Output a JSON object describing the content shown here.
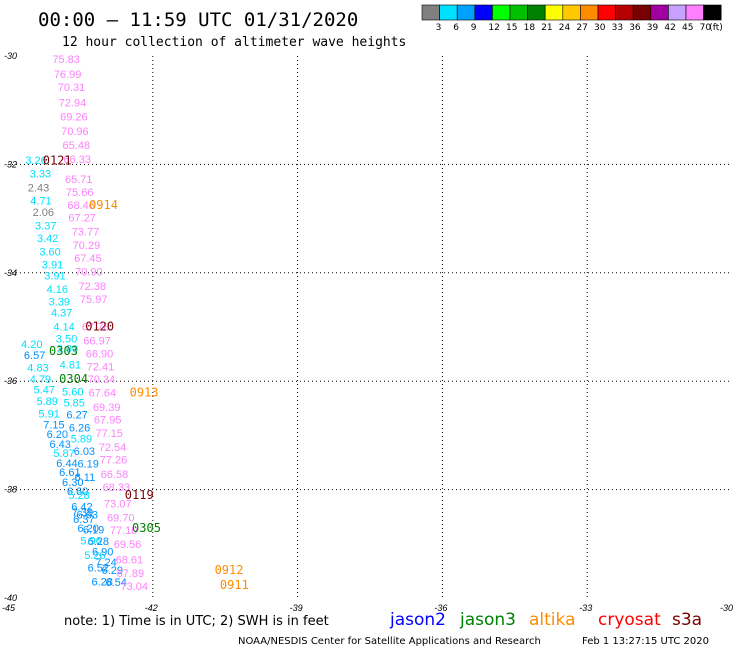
{
  "header": {
    "title": "00:00 – 11:59 UTC 01/31/2020",
    "subtitle": "12 hour collection of altimeter wave heights"
  },
  "colorbar": {
    "labels": [
      "3",
      "6",
      "9",
      "12",
      "15",
      "18",
      "21",
      "24",
      "27",
      "30",
      "33",
      "36",
      "39",
      "42",
      "45",
      "70"
    ],
    "unit": "(ft)",
    "colors": [
      "#808080",
      "#00e0ff",
      "#00a0ff",
      "#0000ff",
      "#00ff00",
      "#00c000",
      "#008000",
      "#ffff00",
      "#ffc800",
      "#ff8c00",
      "#ff0000",
      "#b40000",
      "#780000",
      "#a000a0",
      "#c8a0ff",
      "#ff80ff",
      "#000000"
    ]
  },
  "footer": {
    "note": "note:  1) Time is in UTC;  2) SWH is in feet",
    "legend": [
      {
        "name": "jason2",
        "color": "#0000ff"
      },
      {
        "name": "jason3",
        "color": "#008000"
      },
      {
        "name": "altika",
        "color": "#ff8c00"
      },
      {
        "name": "cryosat",
        "color": "#ff0000"
      },
      {
        "name": "s3a",
        "color": "#780000"
      }
    ],
    "credit": "NOAA/NESDIS Center for Satellite Applications and Research",
    "timestamp": "Feb  1 13:27:15 UTC 2020"
  },
  "chart_data": {
    "type": "scatter",
    "title": "00:00 – 11:59 UTC 01/31/2020",
    "subtitle": "12 hour collection of altimeter wave heights",
    "xlim": [
      -45,
      -30
    ],
    "ylim": [
      -40,
      -30
    ],
    "x_ticks": [
      "-45",
      "-42",
      "-39",
      "-36",
      "-33",
      "-30"
    ],
    "y_ticks": [
      "-30",
      "-32",
      "-34",
      "-36",
      "-38",
      "-40"
    ],
    "grid": true,
    "unit": "ft",
    "points": [
      {
        "x": -44.08,
        "y": -30.13,
        "v": "75.83",
        "c": "#ff80ff"
      },
      {
        "x": -44.05,
        "y": -30.41,
        "v": "76.99",
        "c": "#ff80ff"
      },
      {
        "x": -43.97,
        "y": -30.65,
        "v": "70.31",
        "c": "#ff80ff"
      },
      {
        "x": -43.95,
        "y": -30.93,
        "v": "72.94",
        "c": "#ff80ff"
      },
      {
        "x": -43.92,
        "y": -31.19,
        "v": "69.26",
        "c": "#ff80ff"
      },
      {
        "x": -43.9,
        "y": -31.46,
        "v": "70.96",
        "c": "#ff80ff"
      },
      {
        "x": -43.87,
        "y": -31.72,
        "v": "65.48",
        "c": "#ff80ff"
      },
      {
        "x": -43.85,
        "y": -31.97,
        "v": "66.33",
        "c": "#ff80ff"
      },
      {
        "x": -44.64,
        "y": -31.99,
        "v": "3.26",
        "c": "#00e0ff"
      },
      {
        "x": -44.55,
        "y": -32.24,
        "v": "3.33",
        "c": "#00e0ff"
      },
      {
        "x": -43.82,
        "y": -32.34,
        "v": "65.71",
        "c": "#ff80ff"
      },
      {
        "x": -44.59,
        "y": -32.5,
        "v": "2.43",
        "c": "#808080"
      },
      {
        "x": -43.8,
        "y": -32.58,
        "v": "75.66",
        "c": "#ff80ff"
      },
      {
        "x": -44.54,
        "y": -32.74,
        "v": "4.71",
        "c": "#00e0ff"
      },
      {
        "x": -43.77,
        "y": -32.82,
        "v": "68.46",
        "c": "#ff80ff"
      },
      {
        "x": -44.49,
        "y": -32.95,
        "v": "2.06",
        "c": "#808080"
      },
      {
        "x": -43.75,
        "y": -33.05,
        "v": "67.27",
        "c": "#ff80ff"
      },
      {
        "x": -44.44,
        "y": -33.2,
        "v": "3.37",
        "c": "#00e0ff"
      },
      {
        "x": -43.68,
        "y": -33.31,
        "v": "73.77",
        "c": "#ff80ff"
      },
      {
        "x": -44.4,
        "y": -33.43,
        "v": "3.42",
        "c": "#00e0ff"
      },
      {
        "x": -43.66,
        "y": -33.56,
        "v": "70.29",
        "c": "#ff80ff"
      },
      {
        "x": -44.35,
        "y": -33.68,
        "v": "3.60",
        "c": "#00e0ff"
      },
      {
        "x": -43.63,
        "y": -33.8,
        "v": "67.45",
        "c": "#ff80ff"
      },
      {
        "x": -44.3,
        "y": -33.92,
        "v": "3.91",
        "c": "#00e0ff"
      },
      {
        "x": -43.61,
        "y": -34.05,
        "v": "70.90",
        "c": "#ff80ff"
      },
      {
        "x": -44.25,
        "y": -34.12,
        "v": "3.91",
        "c": "#00e0ff"
      },
      {
        "x": -44.2,
        "y": -34.37,
        "v": "4.16",
        "c": "#00e0ff"
      },
      {
        "x": -43.54,
        "y": -34.32,
        "v": "72.38",
        "c": "#ff80ff"
      },
      {
        "x": -44.16,
        "y": -34.6,
        "v": "3.39",
        "c": "#00e0ff"
      },
      {
        "x": -43.51,
        "y": -34.56,
        "v": "75.97",
        "c": "#ff80ff"
      },
      {
        "x": -44.11,
        "y": -34.81,
        "v": "4.37",
        "c": "#00e0ff"
      },
      {
        "x": -44.06,
        "y": -35.06,
        "v": "4.14",
        "c": "#00e0ff"
      },
      {
        "x": -43.47,
        "y": -35.06,
        "v": "67.78",
        "c": "#ff80ff"
      },
      {
        "x": -44.01,
        "y": -35.29,
        "v": "3.50",
        "c": "#00e0ff"
      },
      {
        "x": -43.44,
        "y": -35.32,
        "v": "66.97",
        "c": "#ff80ff"
      },
      {
        "x": -44.73,
        "y": -35.39,
        "v": "4.20",
        "c": "#00e0ff"
      },
      {
        "x": -44.67,
        "y": -35.59,
        "v": "6.57",
        "c": "#0090ff"
      },
      {
        "x": -43.99,
        "y": -35.47,
        "v": "3.90",
        "c": "#00e0ff"
      },
      {
        "x": -43.39,
        "y": -35.56,
        "v": "66.90",
        "c": "#ff80ff"
      },
      {
        "x": -44.6,
        "y": -35.82,
        "v": "4.83",
        "c": "#00e0ff"
      },
      {
        "x": -43.93,
        "y": -35.77,
        "v": "4.81",
        "c": "#00e0ff"
      },
      {
        "x": -43.37,
        "y": -35.8,
        "v": "72.41",
        "c": "#ff80ff"
      },
      {
        "x": -44.55,
        "y": -36.03,
        "v": "4.79",
        "c": "#00e0ff"
      },
      {
        "x": -43.35,
        "y": -36.03,
        "v": "70.34",
        "c": "#ff80ff"
      },
      {
        "x": -44.47,
        "y": -36.23,
        "v": "5.47",
        "c": "#00e0ff"
      },
      {
        "x": -43.88,
        "y": -36.26,
        "v": "5.60",
        "c": "#00e0ff"
      },
      {
        "x": -43.33,
        "y": -36.28,
        "v": "67.64",
        "c": "#ff80ff"
      },
      {
        "x": -44.41,
        "y": -36.44,
        "v": "5.89",
        "c": "#00e0ff"
      },
      {
        "x": -43.85,
        "y": -36.47,
        "v": "5.85",
        "c": "#00e0ff"
      },
      {
        "x": -43.24,
        "y": -36.55,
        "v": "69.39",
        "c": "#ff80ff"
      },
      {
        "x": -44.37,
        "y": -36.67,
        "v": "5.91",
        "c": "#00e0ff"
      },
      {
        "x": -43.79,
        "y": -36.69,
        "v": "6.27",
        "c": "#0090ff"
      },
      {
        "x": -44.27,
        "y": -36.87,
        "v": "7.15",
        "c": "#0090ff"
      },
      {
        "x": -43.22,
        "y": -36.78,
        "v": "67.95",
        "c": "#ff80ff"
      },
      {
        "x": -43.74,
        "y": -36.93,
        "v": "6.26",
        "c": "#0090ff"
      },
      {
        "x": -44.2,
        "y": -37.05,
        "v": "6.20",
        "c": "#0090ff"
      },
      {
        "x": -43.19,
        "y": -37.03,
        "v": "77.15",
        "c": "#ff80ff"
      },
      {
        "x": -44.14,
        "y": -37.23,
        "v": "6.43",
        "c": "#0090ff"
      },
      {
        "x": -43.7,
        "y": -37.13,
        "v": "5.89",
        "c": "#00e0ff"
      },
      {
        "x": -43.12,
        "y": -37.29,
        "v": "72.54",
        "c": "#ff80ff"
      },
      {
        "x": -44.06,
        "y": -37.4,
        "v": "5.87",
        "c": "#00e0ff"
      },
      {
        "x": -43.64,
        "y": -37.36,
        "v": "6.03",
        "c": "#0090ff"
      },
      {
        "x": -43.1,
        "y": -37.52,
        "v": "77.26",
        "c": "#ff80ff"
      },
      {
        "x": -44.0,
        "y": -37.58,
        "v": "6.44",
        "c": "#0090ff"
      },
      {
        "x": -43.56,
        "y": -37.59,
        "v": "6.19",
        "c": "#0090ff"
      },
      {
        "x": -43.94,
        "y": -37.75,
        "v": "6.61",
        "c": "#0090ff"
      },
      {
        "x": -43.08,
        "y": -37.79,
        "v": "66.58",
        "c": "#ff80ff"
      },
      {
        "x": -43.88,
        "y": -37.93,
        "v": "6.30",
        "c": "#0090ff"
      },
      {
        "x": -43.62,
        "y": -37.84,
        "v": "6.11",
        "c": "#0090ff"
      },
      {
        "x": -43.04,
        "y": -38.03,
        "v": "68.33",
        "c": "#ff80ff"
      },
      {
        "x": -43.78,
        "y": -38.1,
        "v": "6.60",
        "c": "#0090ff"
      },
      {
        "x": -43.75,
        "y": -38.17,
        "v": "5.28",
        "c": "#00e0ff"
      },
      {
        "x": -43.69,
        "y": -38.39,
        "v": "6.42",
        "c": "#0090ff"
      },
      {
        "x": -43.01,
        "y": -38.33,
        "v": "73.07",
        "c": "#ff80ff"
      },
      {
        "x": -43.68,
        "y": -38.49,
        "v": "7.39",
        "c": "#0090ff"
      },
      {
        "x": -43.58,
        "y": -38.53,
        "v": "6.63",
        "c": "#0090ff"
      },
      {
        "x": -43.65,
        "y": -38.62,
        "v": "6.37",
        "c": "#0090ff"
      },
      {
        "x": -42.95,
        "y": -38.59,
        "v": "69.70",
        "c": "#ff80ff"
      },
      {
        "x": -43.56,
        "y": -38.78,
        "v": "6.20",
        "c": "#0090ff"
      },
      {
        "x": -43.45,
        "y": -38.81,
        "v": "6.19",
        "c": "#0090ff"
      },
      {
        "x": -42.89,
        "y": -38.82,
        "v": "77.10",
        "c": "#ff80ff"
      },
      {
        "x": -43.5,
        "y": -39.01,
        "v": "5.96",
        "c": "#00e0ff"
      },
      {
        "x": -43.35,
        "y": -39.02,
        "v": "6.28",
        "c": "#0090ff"
      },
      {
        "x": -42.81,
        "y": -39.08,
        "v": "69.56",
        "c": "#ff80ff"
      },
      {
        "x": -43.42,
        "y": -39.28,
        "v": "5.26",
        "c": "#00e0ff"
      },
      {
        "x": -43.26,
        "y": -39.22,
        "v": "6.90",
        "c": "#0090ff"
      },
      {
        "x": -43.19,
        "y": -39.41,
        "v": "7.24",
        "c": "#0090ff"
      },
      {
        "x": -42.77,
        "y": -39.36,
        "v": "68.61",
        "c": "#ff80ff"
      },
      {
        "x": -43.35,
        "y": -39.51,
        "v": "6.52",
        "c": "#0090ff"
      },
      {
        "x": -43.06,
        "y": -39.56,
        "v": "6.29",
        "c": "#0090ff"
      },
      {
        "x": -42.75,
        "y": -39.61,
        "v": "67.89",
        "c": "#ff80ff"
      },
      {
        "x": -43.27,
        "y": -39.77,
        "v": "6.28",
        "c": "#0090ff"
      },
      {
        "x": -42.98,
        "y": -39.78,
        "v": "6.54",
        "c": "#0090ff"
      },
      {
        "x": -42.67,
        "y": -39.85,
        "v": "73.04",
        "c": "#ff80ff"
      }
    ],
    "passes": [
      {
        "label": "0121",
        "x": -44.28,
        "y": -32.0,
        "color": "#780000"
      },
      {
        "label": "0914",
        "x": -43.32,
        "y": -32.82,
        "color": "#ff8c00"
      },
      {
        "label": "0120",
        "x": -43.4,
        "y": -35.06,
        "color": "#780000"
      },
      {
        "label": "0303",
        "x": -44.15,
        "y": -35.52,
        "color": "#008000"
      },
      {
        "label": "0304",
        "x": -43.94,
        "y": -36.03,
        "color": "#008000"
      },
      {
        "label": "0913",
        "x": -42.48,
        "y": -36.28,
        "color": "#ff8c00"
      },
      {
        "label": "0119",
        "x": -42.58,
        "y": -38.17,
        "color": "#780000"
      },
      {
        "label": "0305",
        "x": -42.43,
        "y": -38.78,
        "color": "#008000"
      },
      {
        "label": "0912",
        "x": -40.72,
        "y": -39.56,
        "color": "#ff8c00"
      },
      {
        "label": "0911",
        "x": -40.61,
        "y": -39.83,
        "color": "#ff8c00"
      }
    ]
  }
}
